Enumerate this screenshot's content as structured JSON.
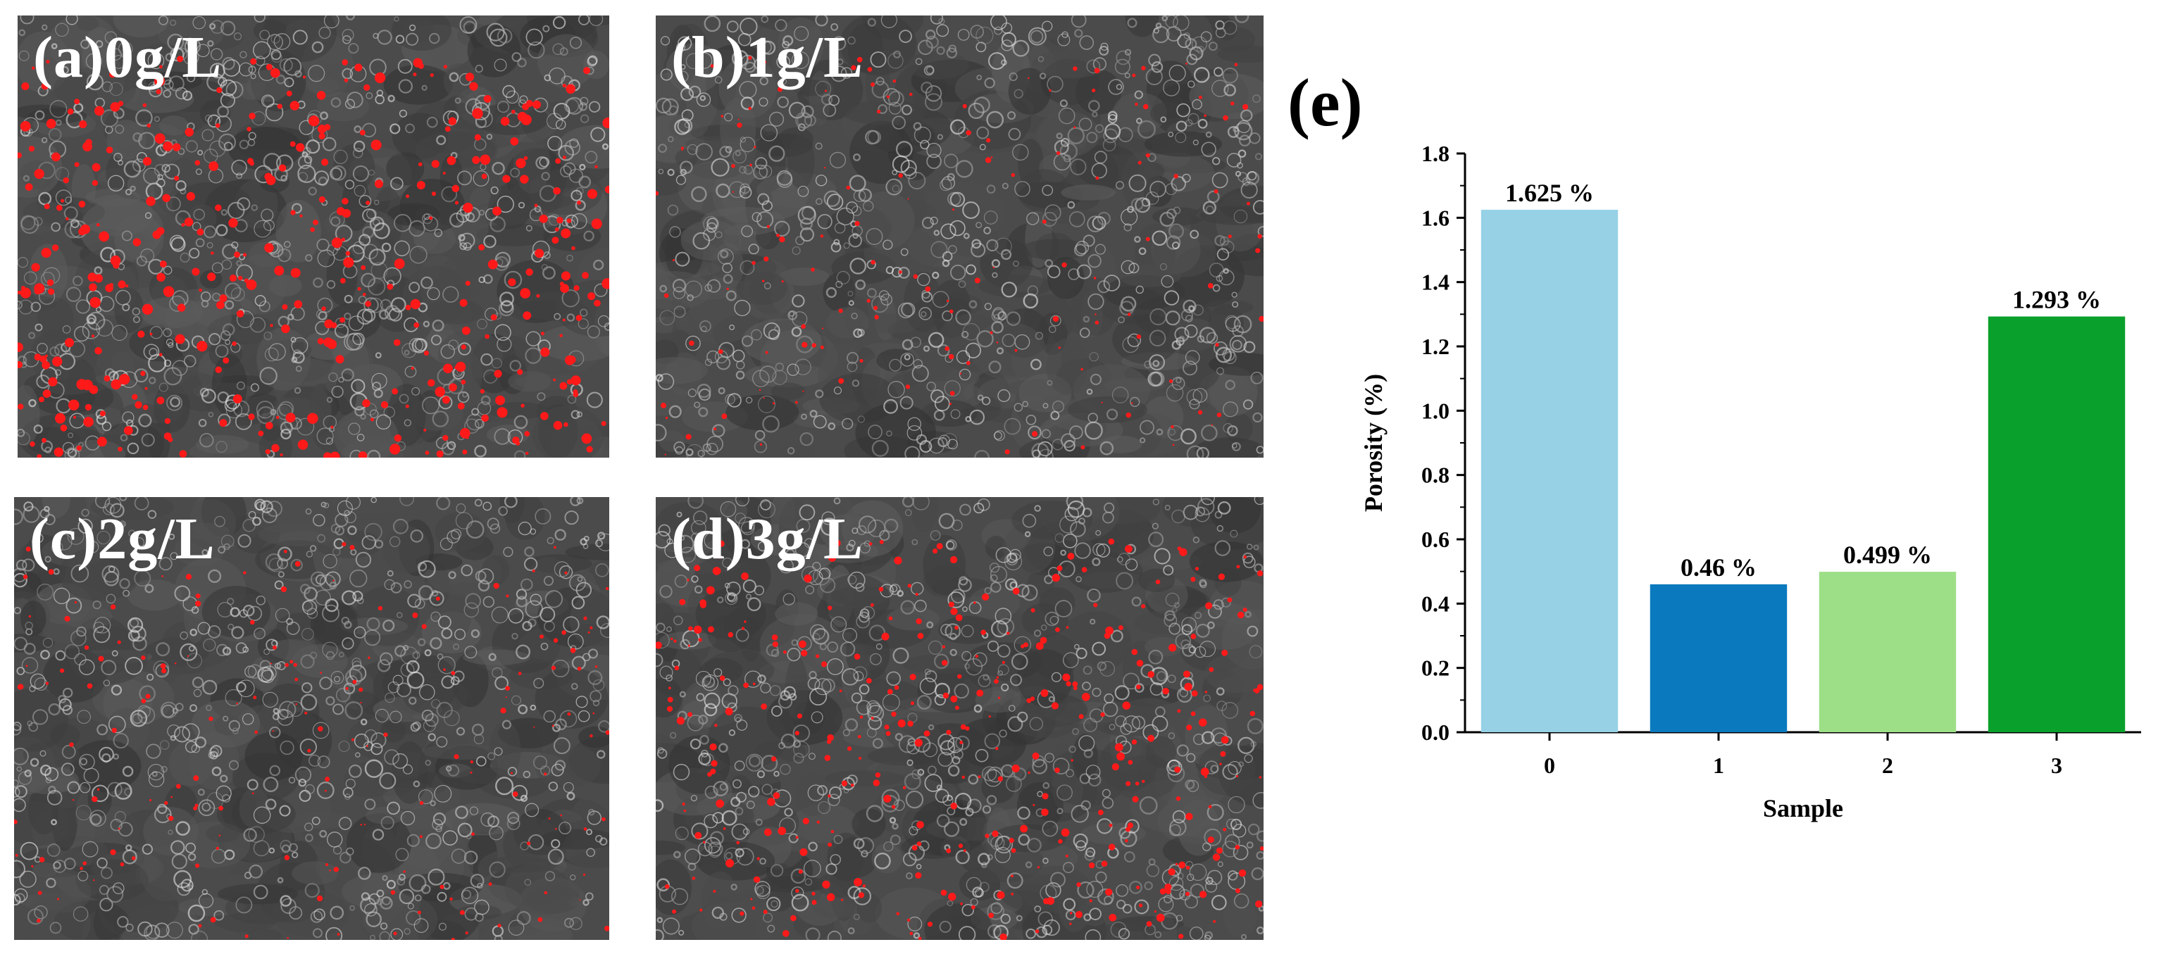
{
  "panels": [
    {
      "id": "a",
      "label": "(a)0g/L",
      "pore_density": 0.9,
      "pore_size": 1.3
    },
    {
      "id": "b",
      "label": "(b)1g/L",
      "pore_density": 0.35,
      "pore_size": 0.7
    },
    {
      "id": "c",
      "label": "(c)2g/L",
      "pore_density": 0.4,
      "pore_size": 0.7
    },
    {
      "id": "d",
      "label": "(d)3g/L",
      "pore_density": 0.8,
      "pore_size": 1.0
    }
  ],
  "chart_panel_label": "(e)",
  "chart_data": {
    "type": "bar",
    "categories": [
      "0",
      "1",
      "2",
      "3"
    ],
    "values": [
      1.625,
      0.46,
      0.499,
      1.293
    ],
    "data_labels": [
      "1.625 %",
      "0.46 %",
      "0.499 %",
      "1.293 %"
    ],
    "colors": [
      "#96d1e6",
      "#0a79bd",
      "#9ddf87",
      "#0aa02c"
    ],
    "xlabel": "Sample",
    "ylabel": "Porosity (%)",
    "ylim": [
      0,
      1.8
    ],
    "yticks": [
      "0.0",
      "0.2",
      "0.4",
      "0.6",
      "0.8",
      "1.0",
      "1.2",
      "1.4",
      "1.6",
      "1.8"
    ],
    "grid": false
  },
  "colors": {
    "pore": "#ff1a1a",
    "background": "#ffffff"
  }
}
